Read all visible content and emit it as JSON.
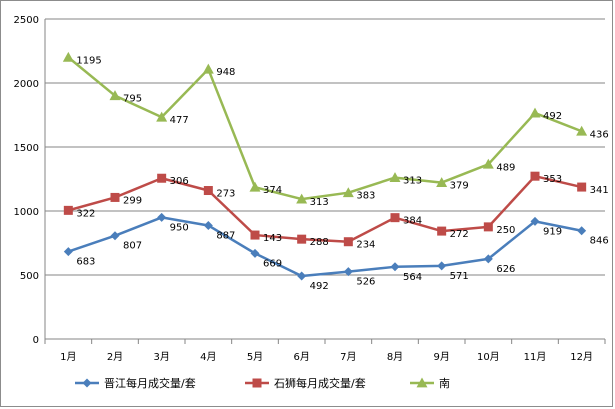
{
  "chart_data": {
    "type": "line",
    "title": "",
    "xlabel": "",
    "ylabel": "",
    "ylim": [
      0,
      2500
    ],
    "yticks": [
      "0",
      "500",
      "1000",
      "1500",
      "2000",
      "2500"
    ],
    "categories": [
      "1月",
      "2月",
      "3月",
      "4月",
      "5月",
      "6月",
      "7月",
      "8月",
      "9月",
      "10月",
      "11月",
      "12月"
    ],
    "grid": true,
    "legend_position": "bottom",
    "series": [
      {
        "name": "晋江每月成交量/套",
        "color": "#4a7ebb",
        "marker": "diamond",
        "values": [
          683,
          807,
          950,
          887,
          669,
          492,
          526,
          564,
          571,
          626,
          919,
          846
        ],
        "labels": [
          "683",
          "807",
          "950",
          "887",
          "669",
          "492",
          "526",
          "564",
          "571",
          "626",
          "919",
          "846"
        ]
      },
      {
        "name": "石狮每月成交量/套",
        "color": "#be4b48",
        "marker": "square",
        "values": [
          1005,
          1106,
          1256,
          1160,
          812,
          780,
          760,
          948,
          843,
          876,
          1272,
          1187
        ],
        "labels": [
          "322",
          "299",
          "306",
          "273",
          "143",
          "288",
          "234",
          "384",
          "272",
          "250",
          "353",
          "341"
        ]
      },
      {
        "name": "南",
        "color": "#98b954",
        "marker": "triangle",
        "values": [
          2200,
          1901,
          1733,
          2108,
          1186,
          1093,
          1143,
          1261,
          1222,
          1365,
          1765,
          1623
        ],
        "labels": [
          "1195",
          "795",
          "477",
          "948",
          "374",
          "313",
          "383",
          "313",
          "379",
          "489",
          "492",
          "436"
        ]
      }
    ]
  }
}
